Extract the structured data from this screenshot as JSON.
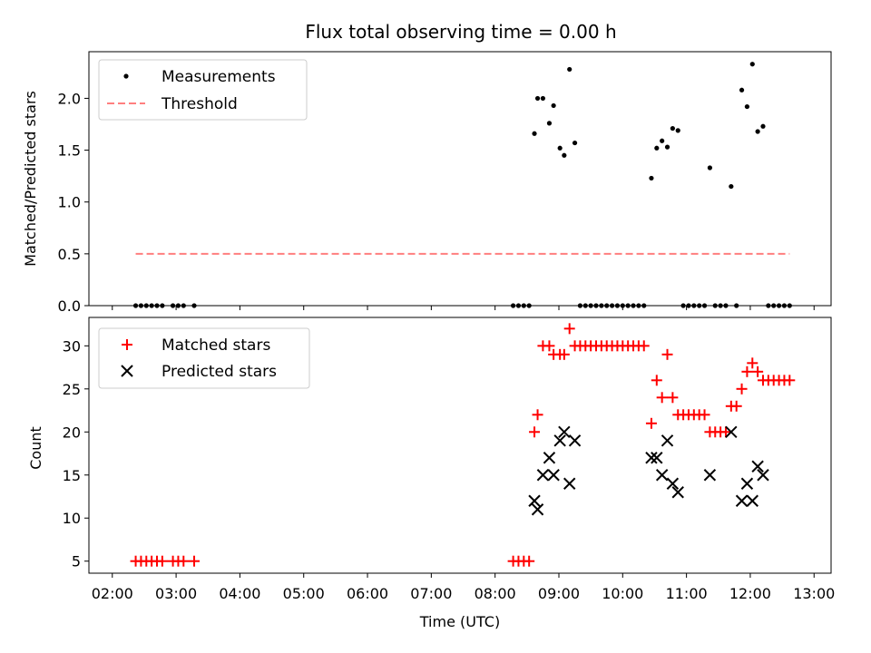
{
  "chart_data": [
    {
      "type": "scatter",
      "title": "Flux total observing time = 0.00 h",
      "xlabel": "",
      "ylabel": "Matched/Predicted stars",
      "xlim": [
        "02:00",
        "13:00"
      ],
      "ylim": [
        0,
        2.45
      ],
      "yticks": [
        0.0,
        0.5,
        1.0,
        1.5,
        2.0
      ],
      "legend": "top-left",
      "series": [
        {
          "name": "Measurements",
          "marker": "dot",
          "color": "#000000",
          "x": [
            "02:22",
            "02:27",
            "02:32",
            "02:37",
            "02:42",
            "02:47",
            "02:57",
            "03:02",
            "03:07",
            "03:17",
            "08:17",
            "08:22",
            "08:27",
            "08:32",
            "08:37",
            "08:40",
            "08:45",
            "08:51",
            "08:55",
            "09:01",
            "09:05",
            "09:10",
            "09:15",
            "09:20",
            "09:25",
            "09:30",
            "09:35",
            "09:40",
            "09:45",
            "09:50",
            "09:55",
            "10:00",
            "10:05",
            "10:10",
            "10:15",
            "10:20",
            "10:27",
            "10:32",
            "10:37",
            "10:42",
            "10:47",
            "10:52",
            "10:57",
            "11:02",
            "11:07",
            "11:12",
            "11:17",
            "11:22",
            "11:27",
            "11:32",
            "11:37",
            "11:42",
            "11:47",
            "11:52",
            "11:57",
            "12:02",
            "12:07",
            "12:12",
            "12:17",
            "12:22",
            "12:27",
            "12:32",
            "12:37"
          ],
          "y": [
            0,
            0,
            0,
            0,
            0,
            0,
            0,
            0,
            0,
            0,
            0,
            0,
            0,
            0,
            1.66,
            2.0,
            2.0,
            1.76,
            1.93,
            1.52,
            1.45,
            2.28,
            1.57,
            0,
            0,
            0,
            0,
            0,
            0,
            0,
            0,
            0,
            0,
            0,
            0,
            0,
            1.23,
            1.52,
            1.59,
            1.53,
            1.71,
            1.69,
            0,
            0,
            0,
            0,
            0,
            1.33,
            0,
            0,
            0,
            1.15,
            0,
            2.08,
            1.92,
            2.33,
            1.68,
            1.73,
            0,
            0,
            0,
            0,
            0
          ]
        },
        {
          "name": "Threshold",
          "marker": "dashed-line",
          "color": "#ff7f7f",
          "x": [
            "02:22",
            "12:37"
          ],
          "y": [
            0.5,
            0.5
          ]
        }
      ]
    },
    {
      "type": "scatter",
      "title": "",
      "xlabel": "Time (UTC)",
      "ylabel": "Count",
      "xlim": [
        "02:00",
        "13:00"
      ],
      "ylim": [
        3.6,
        33.3
      ],
      "yticks": [
        5,
        10,
        15,
        20,
        25,
        30
      ],
      "xticks": [
        "02:00",
        "03:00",
        "04:00",
        "05:00",
        "06:00",
        "07:00",
        "08:00",
        "09:00",
        "10:00",
        "11:00",
        "12:00",
        "13:00"
      ],
      "legend": "top-left",
      "series": [
        {
          "name": "Matched stars",
          "marker": "plus",
          "color": "#ff0000",
          "x": [
            "02:22",
            "02:27",
            "02:32",
            "02:37",
            "02:42",
            "02:47",
            "02:57",
            "03:02",
            "03:07",
            "03:17",
            "08:17",
            "08:22",
            "08:27",
            "08:32",
            "08:37",
            "08:40",
            "08:45",
            "08:51",
            "08:55",
            "09:01",
            "09:05",
            "09:10",
            "09:15",
            "09:20",
            "09:25",
            "09:30",
            "09:35",
            "09:40",
            "09:45",
            "09:50",
            "09:55",
            "10:00",
            "10:05",
            "10:10",
            "10:15",
            "10:20",
            "10:27",
            "10:32",
            "10:37",
            "10:42",
            "10:47",
            "10:52",
            "10:57",
            "11:02",
            "11:07",
            "11:12",
            "11:17",
            "11:22",
            "11:27",
            "11:32",
            "11:37",
            "11:42",
            "11:47",
            "11:52",
            "11:57",
            "12:02",
            "12:07",
            "12:12",
            "12:17",
            "12:22",
            "12:27",
            "12:32",
            "12:37"
          ],
          "y": [
            5,
            5,
            5,
            5,
            5,
            5,
            5,
            5,
            5,
            5,
            5,
            5,
            5,
            5,
            20,
            22,
            30,
            30,
            29,
            29,
            29,
            32,
            30,
            30,
            30,
            30,
            30,
            30,
            30,
            30,
            30,
            30,
            30,
            30,
            30,
            30,
            21,
            26,
            24,
            29,
            24,
            22,
            22,
            22,
            22,
            22,
            22,
            20,
            20,
            20,
            20,
            23,
            23,
            25,
            27,
            28,
            27,
            26,
            26,
            26,
            26,
            26,
            26
          ]
        },
        {
          "name": "Predicted stars",
          "marker": "x",
          "color": "#000000",
          "x": [
            "08:37",
            "08:40",
            "08:45",
            "08:51",
            "08:55",
            "09:01",
            "09:05",
            "09:10",
            "09:15",
            "10:27",
            "10:32",
            "10:37",
            "10:42",
            "10:47",
            "10:52",
            "11:22",
            "11:42",
            "11:52",
            "11:57",
            "12:02",
            "12:07",
            "12:12"
          ],
          "y": [
            12,
            11,
            15,
            17,
            15,
            19,
            20,
            14,
            19,
            17,
            17,
            15,
            19,
            14,
            13,
            15,
            20,
            12,
            14,
            12,
            16,
            15
          ]
        }
      ]
    }
  ]
}
